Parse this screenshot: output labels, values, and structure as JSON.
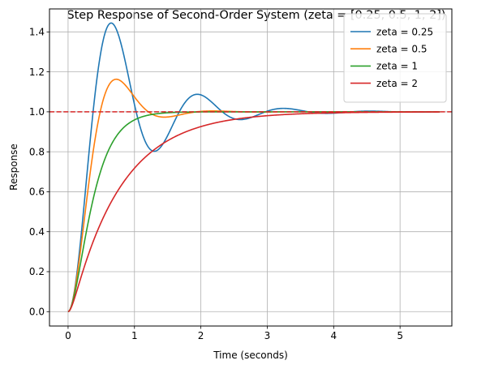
{
  "chart_data": {
    "type": "line",
    "title": "Step Response of Second-Order System (zeta = [0.25, 0.5, 1, 2])",
    "xlabel": "Time (seconds)",
    "ylabel": "Response",
    "xlim": [
      -0.28,
      5.78
    ],
    "ylim": [
      -0.072,
      1.515
    ],
    "xticks": [
      0,
      1,
      2,
      3,
      4,
      5
    ],
    "yticks": [
      0.0,
      0.2,
      0.4,
      0.6,
      0.8,
      1.0,
      1.2,
      1.4
    ],
    "x_tick_labels": [
      "0",
      "1",
      "2",
      "3",
      "4",
      "5"
    ],
    "y_tick_labels": [
      "0.0",
      "0.2",
      "0.4",
      "0.6",
      "0.8",
      "1.0",
      "1.2",
      "1.4"
    ],
    "grid": true,
    "legend_position": "upper right",
    "natural_frequency": 5,
    "x_range": [
      0,
      5.6
    ],
    "reference_line": {
      "y": 1.0,
      "color": "#d62728",
      "style": "dashed"
    },
    "series": [
      {
        "name": "zeta = 0.25",
        "zeta": 0.25,
        "color": "#1f77b4"
      },
      {
        "name": "zeta = 0.5",
        "zeta": 0.5,
        "color": "#ff7f0e"
      },
      {
        "name": "zeta = 1",
        "zeta": 1,
        "color": "#2ca02c"
      },
      {
        "name": "zeta = 2",
        "zeta": 2,
        "color": "#d62728"
      }
    ]
  }
}
